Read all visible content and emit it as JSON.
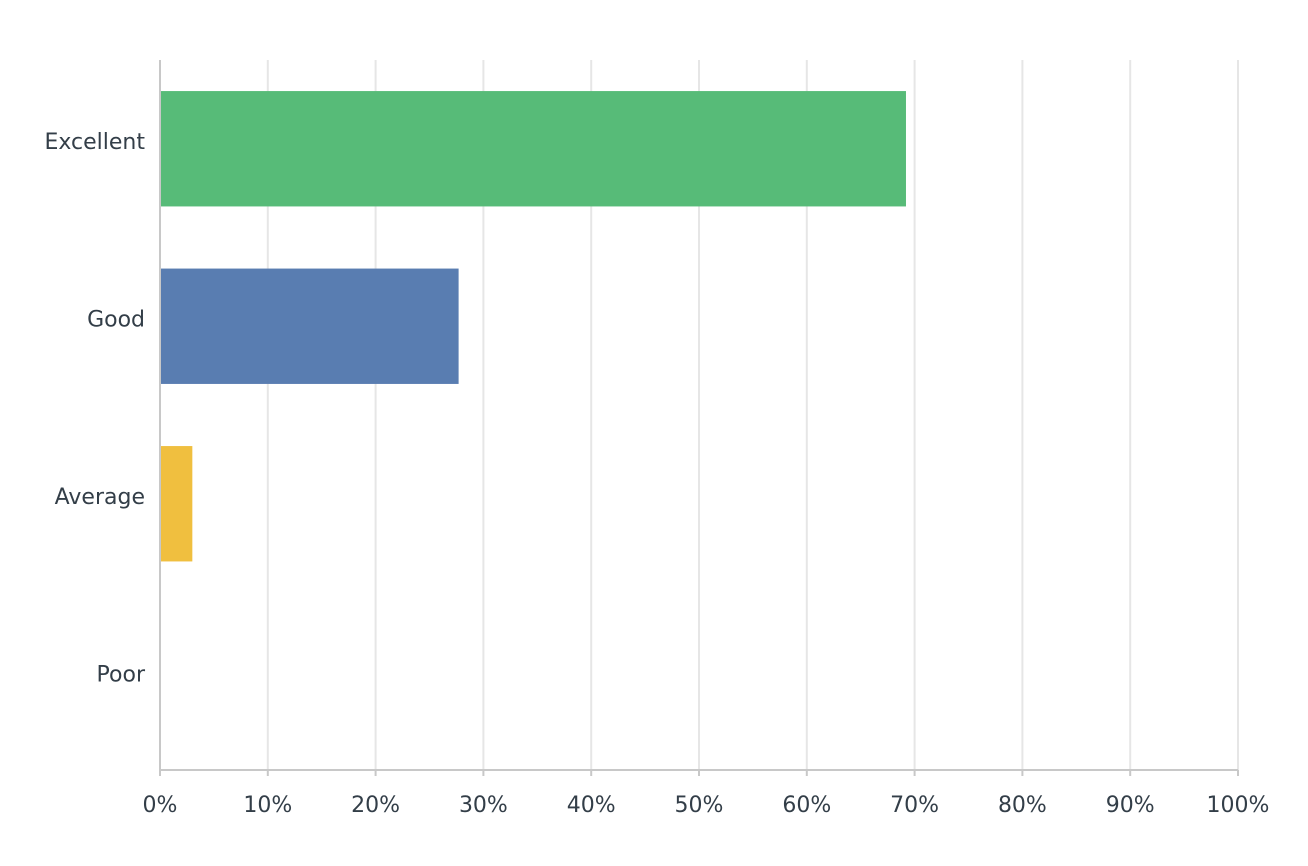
{
  "chart_data": {
    "type": "hbar",
    "categories": [
      "Excellent",
      "Good",
      "Average",
      "Poor"
    ],
    "values": [
      69.2,
      27.7,
      3.0,
      0
    ],
    "colors": [
      "#57bb78",
      "#597db1",
      "#f0bf3f"
    ],
    "xlim": [
      0,
      100
    ],
    "xticks": [
      {
        "value": 0,
        "label": "0%"
      },
      {
        "value": 10,
        "label": "10%"
      },
      {
        "value": 20,
        "label": "20%"
      },
      {
        "value": 30,
        "label": "30%"
      },
      {
        "value": 40,
        "label": "40%"
      },
      {
        "value": 50,
        "label": "50%"
      },
      {
        "value": 60,
        "label": "60%"
      },
      {
        "value": 70,
        "label": "70%"
      },
      {
        "value": 80,
        "label": "80%"
      },
      {
        "value": 90,
        "label": "90%"
      },
      {
        "value": 100,
        "label": "100%"
      }
    ],
    "grid": true
  }
}
